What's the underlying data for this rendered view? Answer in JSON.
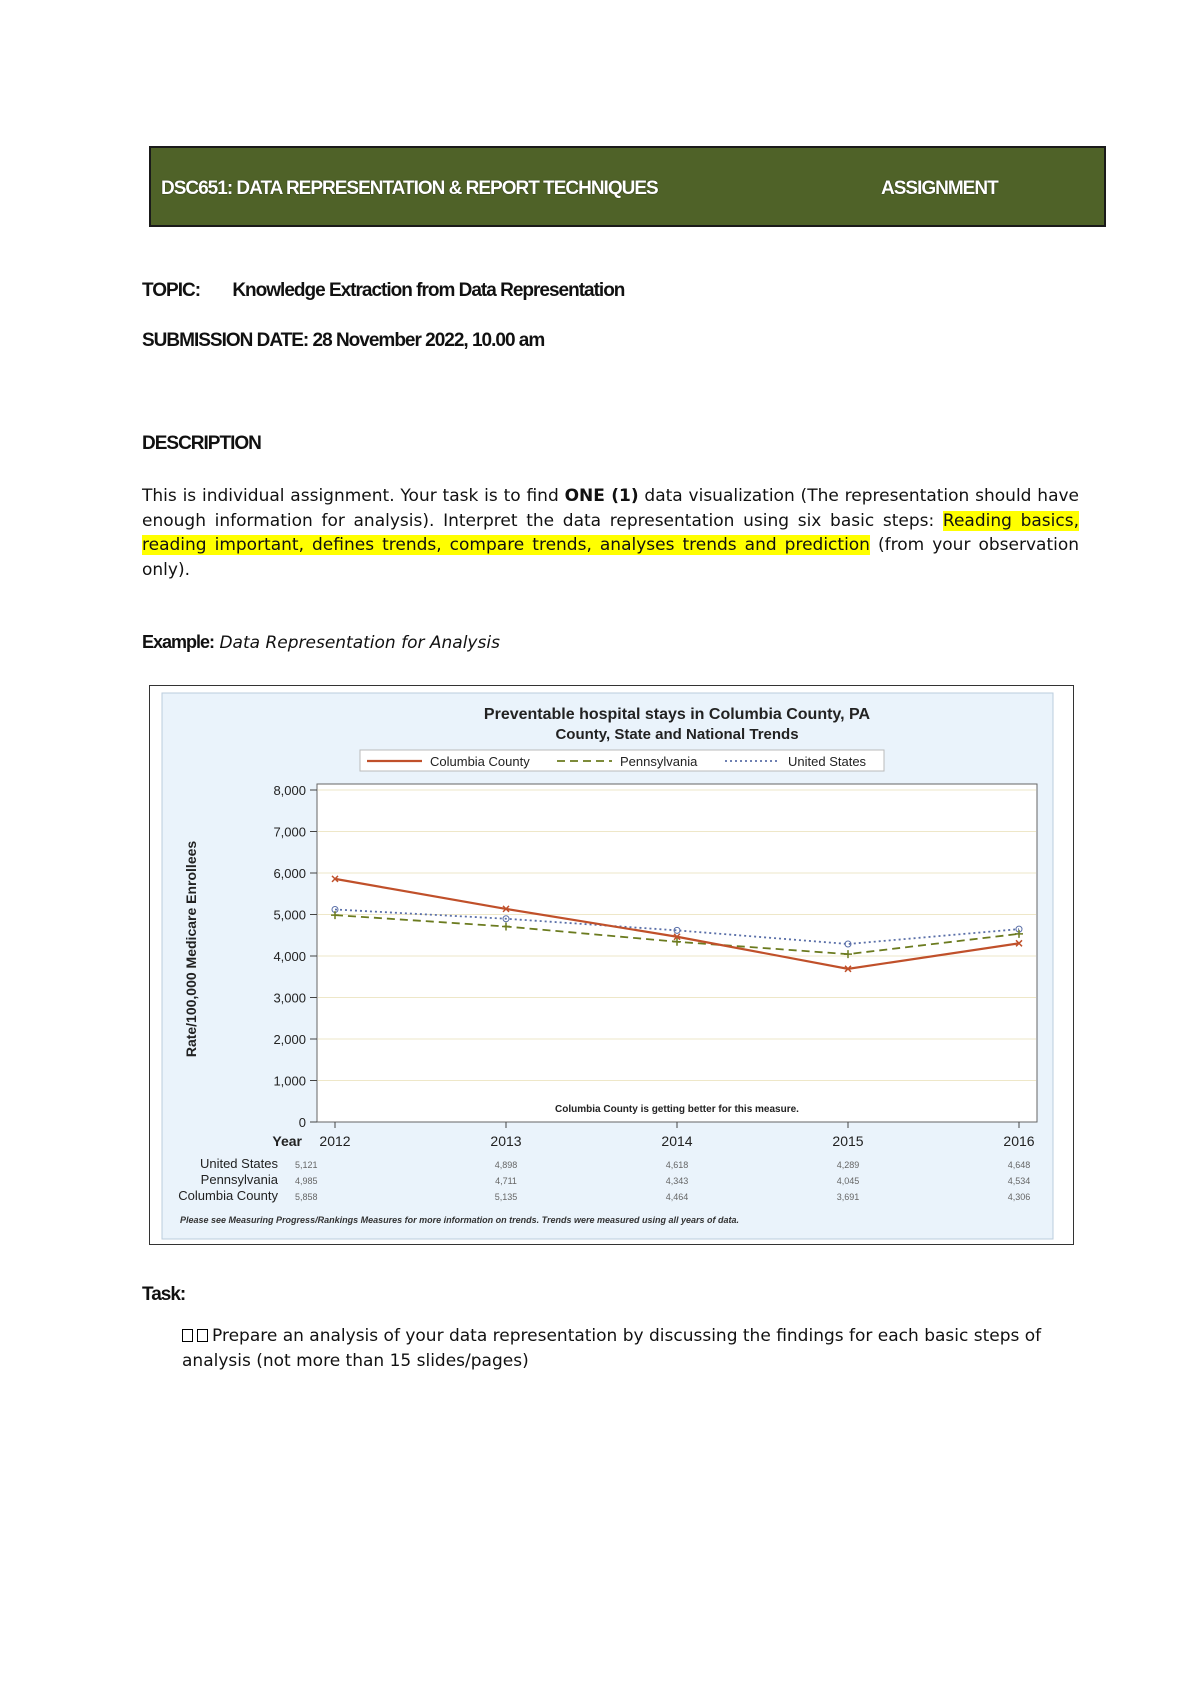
{
  "header": {
    "course": "DSC651: DATA REPRESENTATION & REPORT TECHNIQUES",
    "type": "ASSIGNMENT",
    "bg_color": "#4f6228"
  },
  "topic": {
    "label": "TOPIC:",
    "value": "Knowledge Extraction from Data Representation"
  },
  "submission": {
    "label": "SUBMISSION DATE:",
    "value": "28 November 2022, 10.00 am"
  },
  "description": {
    "heading": "DESCRIPTION",
    "p1": "This is individual assignment. Your task is to find ",
    "p_bold": "ONE (1)",
    "p2": " data visualization (The representation should have enough information for analysis). Interpret the data representation using six basic steps: ",
    "p_highlight": "Reading basics, reading important, defines trends, compare trends, analyses trends and prediction",
    "p3": " (from your observation only).",
    "highlight_color": "#ffff00"
  },
  "example": {
    "label": "Example:",
    "value": "Data Representation for Analysis"
  },
  "task": {
    "label": "Task:",
    "items": [
      "Prepare an analysis of your data representation by discussing the findings for each basic steps of analysis (not more than 15 slides/pages)"
    ]
  },
  "chart_data": {
    "type": "line",
    "title": "Preventable hospital stays in Columbia County, PA",
    "subtitle": "County, State and National Trends",
    "ylabel": "Rate/100,000 Medicare Enrollees",
    "xlabel": "Year",
    "ylim": [
      0,
      8000
    ],
    "yticks": [
      "0",
      "1,000",
      "2,000",
      "3,000",
      "4,000",
      "5,000",
      "6,000",
      "7,000",
      "8,000"
    ],
    "x": [
      "2012",
      "2013",
      "2014",
      "2015",
      "2016"
    ],
    "legend_position": "top",
    "grid": true,
    "annotation": "Columbia County is getting better for this measure.",
    "footnote": "Please see Measuring Progress/Rankings Measures for more information on trends. Trends were measured using all years of data.",
    "series": [
      {
        "name": "Columbia County",
        "color": "#c0502a",
        "style": "solid",
        "marker": "x",
        "values": [
          5858,
          5135,
          4464,
          3691,
          4306
        ],
        "labels": [
          "5,858",
          "5,135",
          "4,464",
          "3,691",
          "4,306"
        ]
      },
      {
        "name": "Pennsylvania",
        "color": "#6b7b1f",
        "style": "dashed",
        "marker": "+",
        "values": [
          4985,
          4711,
          4343,
          4045,
          4534
        ],
        "labels": [
          "4,985",
          "4,711",
          "4,343",
          "4,045",
          "4,534"
        ]
      },
      {
        "name": "United States",
        "color": "#5a6fa8",
        "style": "dotted",
        "marker": "o",
        "values": [
          5121,
          4898,
          4618,
          4289,
          4648
        ],
        "labels": [
          "5,121",
          "4,898",
          "4,618",
          "4,289",
          "4,648"
        ]
      }
    ],
    "table_order": [
      "United States",
      "Pennsylvania",
      "Columbia County"
    ]
  }
}
